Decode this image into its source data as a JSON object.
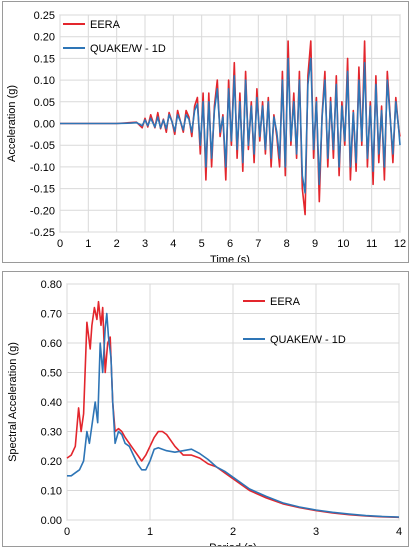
{
  "chart_data": [
    {
      "type": "line",
      "xlabel": "Time (s)",
      "ylabel": "Acceleration (g)",
      "xlim": [
        0,
        12
      ],
      "ylim": [
        -0.25,
        0.25
      ],
      "xticks": [
        "0",
        "1",
        "2",
        "3",
        "4",
        "5",
        "6",
        "7",
        "8",
        "9",
        "10",
        "11",
        "12"
      ],
      "yticks": [
        "0.25",
        "0.20",
        "0.15",
        "0.10",
        "0.05",
        "0.00",
        "-0.05",
        "-0.10",
        "-0.15",
        "-0.20",
        "-0.25"
      ],
      "grid": true,
      "legend_position": "top-left",
      "series": [
        {
          "name": "EERA",
          "color": "#e3262d",
          "x": [
            0,
            0.5,
            1,
            1.5,
            2,
            2.5,
            2.7,
            2.9,
            3.0,
            3.1,
            3.2,
            3.35,
            3.45,
            3.55,
            3.65,
            3.75,
            3.85,
            3.95,
            4.05,
            4.15,
            4.25,
            4.35,
            4.45,
            4.55,
            4.65,
            4.75,
            4.85,
            4.95,
            5.05,
            5.15,
            5.25,
            5.35,
            5.45,
            5.55,
            5.65,
            5.75,
            5.85,
            5.95,
            6.05,
            6.15,
            6.25,
            6.35,
            6.45,
            6.55,
            6.65,
            6.75,
            6.85,
            6.95,
            7.05,
            7.15,
            7.25,
            7.35,
            7.45,
            7.55,
            7.65,
            7.75,
            7.85,
            7.95,
            8.05,
            8.15,
            8.25,
            8.35,
            8.45,
            8.55,
            8.65,
            8.75,
            8.85,
            8.95,
            9.05,
            9.15,
            9.25,
            9.35,
            9.45,
            9.55,
            9.65,
            9.75,
            9.85,
            9.95,
            10.05,
            10.15,
            10.25,
            10.35,
            10.45,
            10.55,
            10.65,
            10.75,
            10.85,
            10.95,
            11.05,
            11.15,
            11.25,
            11.35,
            11.45,
            11.55,
            11.65,
            11.75,
            11.85,
            11.95,
            12.0
          ],
          "y": [
            0,
            0,
            0,
            0,
            0,
            0.002,
            0.003,
            -0.01,
            0.012,
            -0.008,
            0.02,
            -0.01,
            0.025,
            -0.012,
            0.01,
            -0.02,
            0.025,
            0.005,
            -0.025,
            0.03,
            0.005,
            -0.02,
            0.03,
            0.015,
            -0.03,
            0.04,
            0.06,
            -0.07,
            0.07,
            -0.13,
            0.07,
            -0.1,
            0.04,
            0.1,
            -0.03,
            0.02,
            -0.13,
            0.1,
            -0.05,
            0.14,
            -0.08,
            0.07,
            -0.11,
            0.12,
            -0.06,
            0.05,
            -0.09,
            0.08,
            -0.04,
            0.05,
            -0.07,
            0.06,
            -0.1,
            0.02,
            -0.03,
            -0.1,
            0.12,
            -0.12,
            0.19,
            -0.05,
            0.07,
            -0.08,
            0.12,
            -0.15,
            -0.21,
            0.11,
            0.19,
            -0.08,
            0.06,
            -0.18,
            0.02,
            0.12,
            -0.1,
            0.06,
            -0.08,
            0.11,
            -0.12,
            0.05,
            -0.05,
            0.15,
            -0.13,
            0.03,
            -0.11,
            0.13,
            -0.05,
            0.19,
            -0.1,
            0.05,
            -0.14,
            0.11,
            -0.09,
            0.04,
            -0.13,
            0.12,
            0.02,
            -0.09,
            0.06,
            -0.01,
            -0.03
          ]
        },
        {
          "name": "QUAKE/W - 1D",
          "color": "#2e75b6",
          "x": [
            0,
            0.5,
            1,
            1.5,
            2,
            2.5,
            2.7,
            2.9,
            3.0,
            3.1,
            3.2,
            3.35,
            3.45,
            3.55,
            3.65,
            3.75,
            3.85,
            3.95,
            4.05,
            4.15,
            4.25,
            4.35,
            4.45,
            4.55,
            4.65,
            4.75,
            4.85,
            4.95,
            5.05,
            5.15,
            5.25,
            5.35,
            5.45,
            5.55,
            5.65,
            5.75,
            5.85,
            5.95,
            6.05,
            6.15,
            6.25,
            6.35,
            6.45,
            6.55,
            6.65,
            6.75,
            6.85,
            6.95,
            7.05,
            7.15,
            7.25,
            7.35,
            7.45,
            7.55,
            7.65,
            7.75,
            7.85,
            7.95,
            8.05,
            8.15,
            8.25,
            8.35,
            8.45,
            8.55,
            8.65,
            8.75,
            8.85,
            8.95,
            9.05,
            9.15,
            9.25,
            9.35,
            9.45,
            9.55,
            9.65,
            9.75,
            9.85,
            9.95,
            10.05,
            10.15,
            10.25,
            10.35,
            10.45,
            10.55,
            10.65,
            10.75,
            10.85,
            10.95,
            11.05,
            11.15,
            11.25,
            11.35,
            11.45,
            11.55,
            11.65,
            11.75,
            11.85,
            11.95,
            12.0
          ],
          "y": [
            0,
            0,
            0,
            0,
            0,
            0.001,
            0.002,
            -0.005,
            0.008,
            -0.005,
            0.012,
            -0.008,
            0.015,
            -0.01,
            0.008,
            -0.012,
            0.02,
            0.005,
            -0.018,
            0.02,
            0.005,
            -0.015,
            0.02,
            0.01,
            -0.02,
            0.03,
            0.045,
            -0.05,
            0.05,
            -0.1,
            0.05,
            -0.08,
            0.03,
            0.08,
            -0.02,
            0.015,
            -0.1,
            0.08,
            -0.04,
            0.11,
            -0.06,
            0.05,
            -0.09,
            0.1,
            -0.05,
            0.04,
            -0.07,
            0.06,
            -0.03,
            0.04,
            -0.06,
            0.05,
            -0.08,
            0.015,
            -0.02,
            -0.08,
            0.1,
            -0.1,
            0.15,
            -0.04,
            0.05,
            -0.07,
            0.1,
            -0.12,
            -0.16,
            0.09,
            0.15,
            -0.06,
            0.05,
            -0.14,
            0.015,
            0.1,
            -0.08,
            0.05,
            -0.06,
            0.09,
            -0.1,
            0.04,
            -0.04,
            0.12,
            -0.1,
            0.025,
            -0.09,
            0.1,
            -0.04,
            0.14,
            -0.08,
            0.04,
            -0.11,
            0.09,
            -0.07,
            0.03,
            -0.1,
            0.1,
            0.015,
            -0.07,
            0.05,
            -0.01,
            -0.05
          ]
        }
      ]
    },
    {
      "type": "line",
      "xlabel": "Period (s)",
      "ylabel": "Spectral Acceleration (g)",
      "xlim": [
        0,
        4
      ],
      "ylim": [
        0,
        0.8
      ],
      "xticks": [
        "0",
        "1",
        "2",
        "3",
        "4"
      ],
      "yticks": [
        "0.80",
        "0.70",
        "0.60",
        "0.50",
        "0.40",
        "0.30",
        "0.20",
        "0.10",
        "0.00"
      ],
      "grid": true,
      "legend_position": "top-right",
      "series": [
        {
          "name": "EERA",
          "color": "#e3262d",
          "x": [
            0,
            0.05,
            0.1,
            0.14,
            0.17,
            0.2,
            0.24,
            0.28,
            0.3,
            0.33,
            0.36,
            0.38,
            0.41,
            0.43,
            0.46,
            0.49,
            0.52,
            0.55,
            0.58,
            0.62,
            0.66,
            0.7,
            0.75,
            0.8,
            0.85,
            0.9,
            0.95,
            1.0,
            1.05,
            1.1,
            1.15,
            1.2,
            1.3,
            1.4,
            1.5,
            1.6,
            1.7,
            1.8,
            1.9,
            2.0,
            2.2,
            2.4,
            2.6,
            2.8,
            3.0,
            3.2,
            3.4,
            3.6,
            3.8,
            4.0
          ],
          "y": [
            0.21,
            0.22,
            0.25,
            0.38,
            0.3,
            0.36,
            0.67,
            0.58,
            0.66,
            0.72,
            0.68,
            0.74,
            0.66,
            0.72,
            0.5,
            0.6,
            0.62,
            0.4,
            0.3,
            0.31,
            0.3,
            0.28,
            0.26,
            0.24,
            0.22,
            0.2,
            0.22,
            0.25,
            0.28,
            0.3,
            0.3,
            0.29,
            0.25,
            0.22,
            0.22,
            0.21,
            0.19,
            0.18,
            0.16,
            0.14,
            0.1,
            0.075,
            0.055,
            0.042,
            0.032,
            0.024,
            0.018,
            0.014,
            0.011,
            0.009
          ]
        },
        {
          "name": "QUAKE/W - 1D",
          "color": "#2e75b6",
          "x": [
            0,
            0.05,
            0.1,
            0.15,
            0.2,
            0.24,
            0.27,
            0.3,
            0.34,
            0.37,
            0.4,
            0.43,
            0.46,
            0.48,
            0.5,
            0.53,
            0.55,
            0.58,
            0.62,
            0.66,
            0.7,
            0.75,
            0.8,
            0.85,
            0.9,
            0.95,
            1.0,
            1.05,
            1.1,
            1.15,
            1.2,
            1.3,
            1.4,
            1.5,
            1.6,
            1.7,
            1.8,
            1.9,
            2.0,
            2.2,
            2.4,
            2.6,
            2.8,
            3.0,
            3.2,
            3.4,
            3.6,
            3.8,
            4.0
          ],
          "y": [
            0.15,
            0.15,
            0.16,
            0.17,
            0.2,
            0.3,
            0.26,
            0.32,
            0.4,
            0.33,
            0.6,
            0.5,
            0.65,
            0.7,
            0.62,
            0.55,
            0.4,
            0.26,
            0.3,
            0.29,
            0.26,
            0.25,
            0.22,
            0.19,
            0.17,
            0.17,
            0.2,
            0.24,
            0.245,
            0.24,
            0.235,
            0.23,
            0.235,
            0.24,
            0.225,
            0.205,
            0.18,
            0.165,
            0.145,
            0.105,
            0.08,
            0.058,
            0.044,
            0.034,
            0.026,
            0.02,
            0.015,
            0.012,
            0.01
          ]
        }
      ]
    }
  ]
}
